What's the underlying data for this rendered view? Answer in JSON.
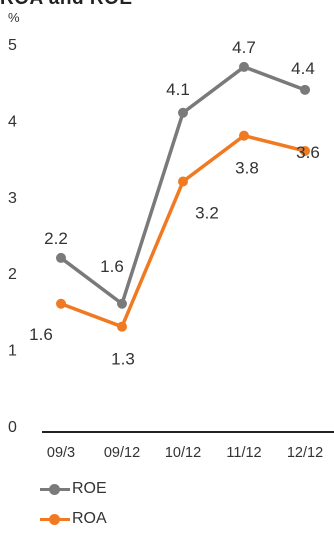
{
  "chart_data": {
    "type": "line",
    "title": "ROA and ROE",
    "unit_label": "%",
    "categories": [
      "09/3",
      "09/12",
      "10/12",
      "11/12",
      "12/12"
    ],
    "ylim": [
      0,
      5
    ],
    "yticks": [
      "0",
      "1",
      "2",
      "3",
      "4",
      "5"
    ],
    "grid": false,
    "legend_position": "bottom-left",
    "series": [
      {
        "name": "ROE",
        "color": "#7a7a7a",
        "values": [
          2.2,
          1.6,
          4.1,
          4.7,
          4.4
        ],
        "labels": [
          "2.2",
          "1.6",
          "4.1",
          "4.7",
          "4.4"
        ]
      },
      {
        "name": "ROA",
        "color": "#f07a22",
        "values": [
          1.6,
          1.3,
          3.2,
          3.8,
          3.6
        ],
        "labels": [
          "1.6",
          "1.3",
          "3.2",
          "3.8",
          "3.6"
        ]
      }
    ]
  }
}
